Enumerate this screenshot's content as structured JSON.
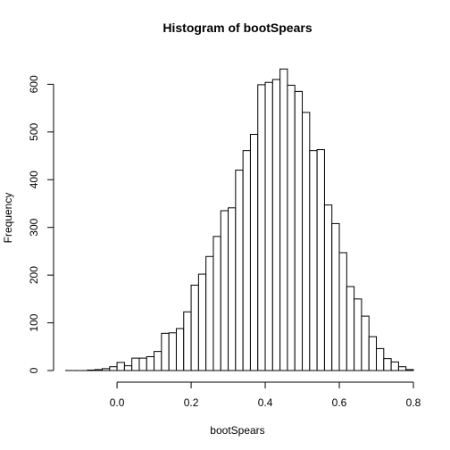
{
  "chart_data": {
    "type": "bar",
    "title": "Histogram of bootSpears",
    "xlabel": "bootSpears",
    "ylabel": "Frequency",
    "xlim": [
      -0.14,
      0.8
    ],
    "ylim": [
      0,
      640
    ],
    "xticks": [
      0.0,
      0.2,
      0.4,
      0.6,
      0.8
    ],
    "xtick_labels": [
      "0.0",
      "0.2",
      "0.4",
      "0.6",
      "0.8"
    ],
    "yticks": [
      0,
      100,
      200,
      300,
      400,
      500,
      600
    ],
    "ytick_labels": [
      "0",
      "100",
      "200",
      "300",
      "400",
      "500",
      "600"
    ],
    "bin_start": -0.14,
    "bin_width": 0.02,
    "values": [
      0,
      0,
      0,
      1,
      2,
      4,
      8,
      17,
      10,
      26,
      26,
      29,
      40,
      78,
      79,
      88,
      123,
      179,
      202,
      239,
      281,
      335,
      341,
      420,
      461,
      495,
      599,
      604,
      610,
      632,
      598,
      585,
      541,
      461,
      463,
      347,
      308,
      247,
      176,
      150,
      114,
      71,
      46,
      25,
      18,
      8,
      2
    ]
  }
}
